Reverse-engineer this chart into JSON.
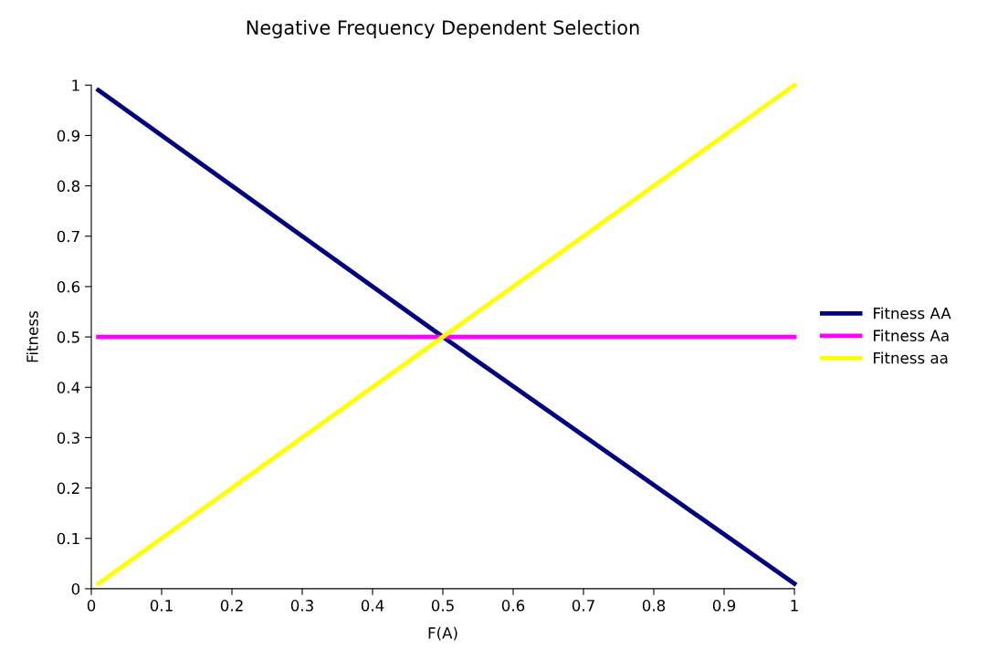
{
  "chart_data": {
    "type": "line",
    "title": "Negative Frequency Dependent Selection",
    "xlabel": "F(A)",
    "ylabel": "Fitness",
    "x": [
      0.01,
      0.5,
      1
    ],
    "series": [
      {
        "name": "Fitness AA",
        "color": "#000080",
        "values": [
          0.99,
          0.5,
          0.01
        ]
      },
      {
        "name": "Fitness Aa",
        "color": "#ff00ff",
        "values": [
          0.5,
          0.5,
          0.5
        ]
      },
      {
        "name": "Fitness aa",
        "color": "#ffff00",
        "values": [
          0.01,
          0.5,
          1
        ]
      }
    ],
    "xlim": [
      0,
      1
    ],
    "ylim": [
      0,
      1
    ],
    "xticks": [
      0,
      0.1,
      0.2,
      0.3,
      0.4,
      0.5,
      0.6,
      0.7,
      0.8,
      0.9,
      1
    ],
    "yticks": [
      0,
      0.1,
      0.2,
      0.3,
      0.4,
      0.5,
      0.6,
      0.7,
      0.8,
      0.9,
      1
    ],
    "grid": false,
    "legend": "right",
    "marker": "none",
    "line_style": "solid"
  }
}
